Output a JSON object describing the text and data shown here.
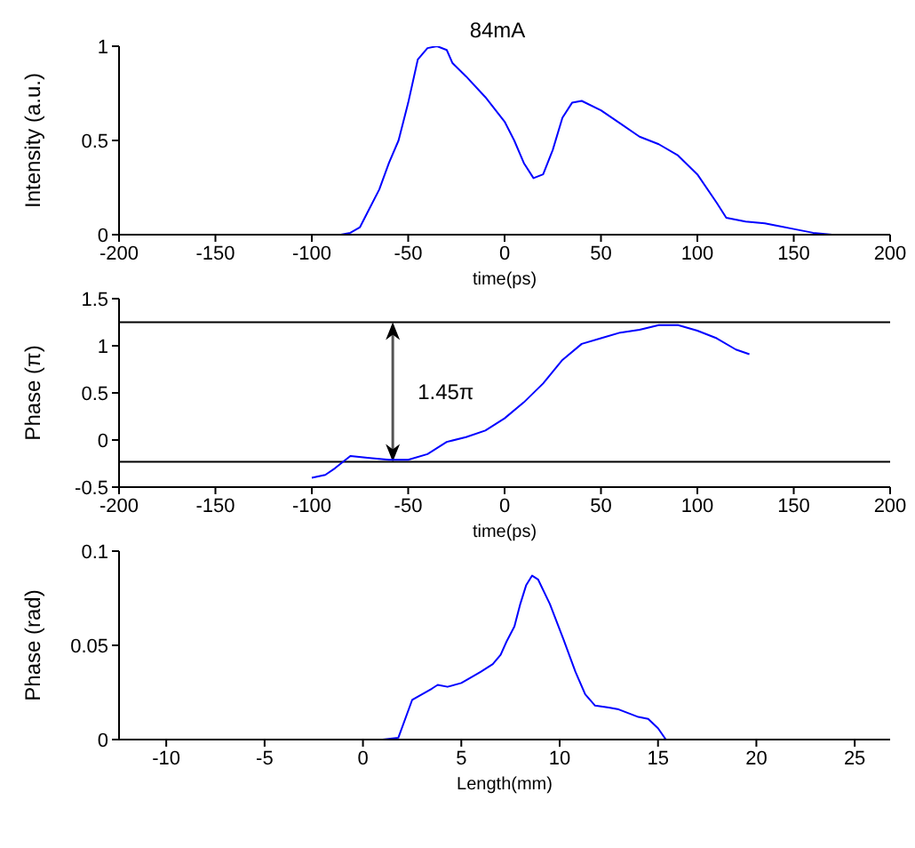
{
  "chart_data": [
    {
      "type": "line",
      "title": "84mA",
      "xlabel": "time(ps)",
      "ylabel": "Intensity (a.u.)",
      "x": [
        -200,
        -85,
        -80,
        -75,
        -70,
        -65,
        -60,
        -55,
        -50,
        -45,
        -40,
        -35,
        -30,
        -27,
        -20,
        -10,
        0,
        5,
        10,
        15,
        20,
        25,
        30,
        35,
        40,
        50,
        60,
        70,
        80,
        90,
        100,
        110,
        115,
        125,
        135,
        150,
        160,
        170,
        200
      ],
      "series": [
        {
          "color": "#0000ff",
          "values": [
            0,
            0,
            0.01,
            0.04,
            0.14,
            0.24,
            0.38,
            0.5,
            0.7,
            0.93,
            0.99,
            1.0,
            0.98,
            0.91,
            0.84,
            0.73,
            0.6,
            0.5,
            0.38,
            0.3,
            0.32,
            0.45,
            0.62,
            0.7,
            0.71,
            0.66,
            0.59,
            0.52,
            0.48,
            0.42,
            0.32,
            0.17,
            0.09,
            0.07,
            0.06,
            0.03,
            0.01,
            0,
            0
          ]
        }
      ],
      "xlim": [
        -200,
        200
      ],
      "xticks": [
        -200,
        -150,
        -100,
        -50,
        0,
        50,
        100,
        150,
        200
      ],
      "ylim": [
        0,
        1
      ],
      "yticks": [
        0,
        0.5,
        1
      ],
      "grid": false,
      "legend": false,
      "marker": "none",
      "line_style": "solid"
    },
    {
      "type": "line",
      "xlabel": "time(ps)",
      "ylabel": "Phase (π)",
      "x": [
        -100,
        -93,
        -88,
        -80,
        -70,
        -60,
        -50,
        -40,
        -30,
        -20,
        -10,
        0,
        10,
        20,
        30,
        40,
        50,
        60,
        70,
        80,
        90,
        100,
        110,
        120,
        127
      ],
      "series": [
        {
          "color": "#0000ff",
          "values": [
            -0.4,
            -0.37,
            -0.3,
            -0.17,
            -0.19,
            -0.21,
            -0.21,
            -0.15,
            -0.02,
            0.03,
            0.1,
            0.23,
            0.4,
            0.6,
            0.85,
            1.02,
            1.08,
            1.14,
            1.17,
            1.22,
            1.22,
            1.16,
            1.08,
            0.96,
            0.91
          ]
        }
      ],
      "xlim": [
        -200,
        200
      ],
      "xticks": [
        -200,
        -150,
        -100,
        -50,
        0,
        50,
        100,
        150,
        200
      ],
      "ylim": [
        -0.5,
        1.5
      ],
      "yticks": [
        -0.5,
        0,
        0.5,
        1,
        1.5
      ],
      "ref_lines": [
        {
          "axis": "y",
          "value": 1.25,
          "color": "#000000"
        },
        {
          "axis": "y",
          "value": -0.23,
          "color": "#000000"
        }
      ],
      "annotations": [
        "1.45π"
      ],
      "grid": false,
      "legend": false,
      "marker": "none",
      "line_style": "solid"
    },
    {
      "type": "line",
      "xlabel": "Length(mm)",
      "ylabel": "Phase (rad)",
      "x": [
        1.0,
        1.8,
        2.5,
        3,
        3.5,
        3.8,
        4.3,
        5,
        6,
        6.6,
        7,
        7.3,
        7.7,
        8,
        8.3,
        8.6,
        8.9,
        9.5,
        10.2,
        10.8,
        11.3,
        11.8,
        12.5,
        13,
        14,
        14.5,
        15,
        15.4
      ],
      "series": [
        {
          "color": "#0000ff",
          "values": [
            0,
            0.001,
            0.021,
            0.024,
            0.027,
            0.029,
            0.028,
            0.03,
            0.036,
            0.04,
            0.045,
            0.052,
            0.06,
            0.072,
            0.082,
            0.087,
            0.085,
            0.072,
            0.053,
            0.036,
            0.024,
            0.018,
            0.017,
            0.016,
            0.012,
            0.011,
            0.006,
            0
          ]
        }
      ],
      "xlim": [
        -12.4,
        26.8
      ],
      "xticks": [
        -10,
        -5,
        0,
        5,
        10,
        15,
        20,
        25
      ],
      "ylim": [
        0,
        0.1
      ],
      "yticks": [
        0,
        0.05,
        0.1
      ],
      "grid": false,
      "legend": false,
      "marker": "none",
      "line_style": "solid"
    }
  ]
}
